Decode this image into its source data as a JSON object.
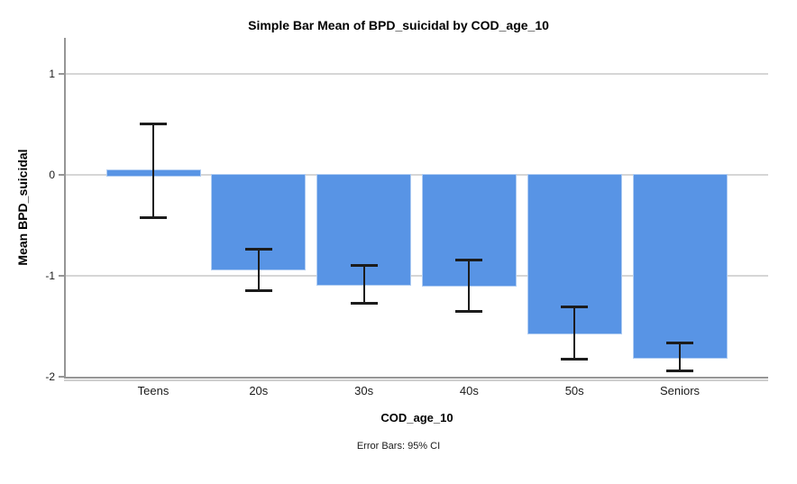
{
  "chart_data": {
    "type": "bar",
    "title": "Simple Bar Mean of BPD_suicidal by COD_age_10",
    "xlabel": "COD_age_10",
    "ylabel": "Mean BPD_suicidal",
    "footnote": "Error Bars: 95% CI",
    "categories": [
      "Teens",
      "20s",
      "30s",
      "40s",
      "50s",
      "Seniors"
    ],
    "values": [
      0.04,
      -0.93,
      -1.08,
      -1.09,
      -1.57,
      -1.81
    ],
    "error_bars": {
      "type": "95% CI",
      "low": [
        -0.43,
        -1.15,
        -1.28,
        -1.36,
        -1.83,
        -1.95
      ],
      "high": [
        0.51,
        -0.73,
        -0.89,
        -0.84,
        -1.3,
        -1.66
      ]
    },
    "yticks": [
      1,
      0,
      -1,
      -2
    ],
    "ylim": [
      -2.0,
      1.36
    ],
    "grid": true,
    "legend_position": "none",
    "colors": {
      "bar_fill": "#5894E5",
      "bar_border": "#AFCCF2",
      "gridline": "#D6D6D6",
      "axis": "#969696",
      "axis_shadow": "#CFCFCF",
      "error_bar": "#1C1C1C"
    }
  }
}
